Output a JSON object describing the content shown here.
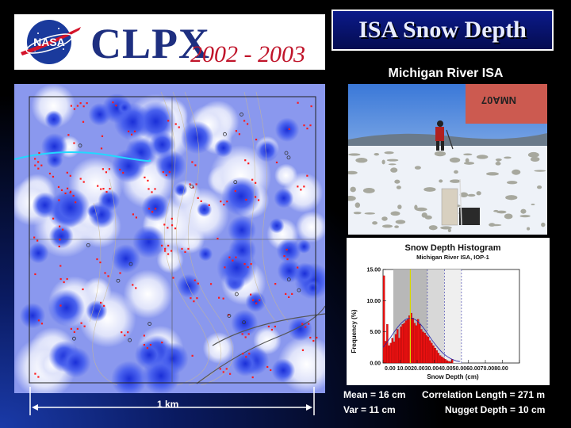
{
  "header": {
    "agency": "NASA",
    "project": "CLPX",
    "years": "2002 - 2003",
    "title": "ISA Snow Depth",
    "subtitle": "Michigan River ISA"
  },
  "map": {
    "scale_label": "1 km"
  },
  "photo": {
    "sign_text": "NMA07"
  },
  "histogram": {
    "title": "Snow Depth Histogram",
    "subtitle": "Michigan River ISA, IOP-1",
    "ylabel": "Frequency (%)",
    "xlabel": "Snow Depth (cm)",
    "yticks": [
      "15.00",
      "10.00",
      "5.00",
      "0.00"
    ],
    "xticks": [
      "0.00",
      "10.00",
      "20.00",
      "30.00",
      "40.00",
      "50.00",
      "60.00",
      "70.00",
      "80.00"
    ],
    "xtick_row": "0.00 10.0020.0030.0040.0050.0060.0070.0080.00"
  },
  "stats": {
    "mean": "Mean = 16 cm",
    "var": "Var = 11 cm",
    "correlation": "Correlation Length = 271 m",
    "nugget": "Nugget Depth = 10 cm"
  },
  "chart_data": {
    "type": "bar",
    "title": "Snow Depth Histogram",
    "subtitle": "Michigan River ISA, IOP-1",
    "xlabel": "Snow Depth (cm)",
    "ylabel": "Frequency (%)",
    "ylim": [
      0,
      15
    ],
    "xlim": [
      0,
      80
    ],
    "categories": [
      "0",
      "1",
      "2",
      "3",
      "4",
      "5",
      "6",
      "7",
      "8",
      "9",
      "10",
      "11",
      "12",
      "13",
      "14",
      "15",
      "16",
      "17",
      "18",
      "19",
      "20",
      "21",
      "22",
      "23",
      "24",
      "25",
      "26",
      "27",
      "28",
      "29",
      "30",
      "31",
      "32",
      "33",
      "34",
      "35",
      "36",
      "37",
      "38",
      "39",
      "40"
    ],
    "values": [
      14.0,
      3.5,
      6.2,
      2.8,
      3.2,
      4.0,
      3.4,
      4.6,
      5.4,
      4.0,
      5.8,
      6.2,
      6.4,
      6.8,
      7.0,
      7.6,
      8.0,
      7.2,
      6.4,
      6.0,
      7.0,
      6.2,
      5.4,
      5.0,
      4.8,
      4.4,
      4.2,
      3.6,
      3.2,
      2.8,
      2.4,
      2.0,
      1.6,
      1.2,
      1.0,
      0.8,
      0.6,
      0.4,
      0.3,
      0.2,
      0.6
    ],
    "mean_marker": 16,
    "bands": [
      {
        "from": 6,
        "to": 26,
        "shade": "#b8b8b8"
      },
      {
        "from": 26,
        "to": 36,
        "shade": "#d8d8d8"
      },
      {
        "from": 36,
        "to": 46,
        "shade": "#efefef"
      }
    ],
    "fit_curve": true
  }
}
